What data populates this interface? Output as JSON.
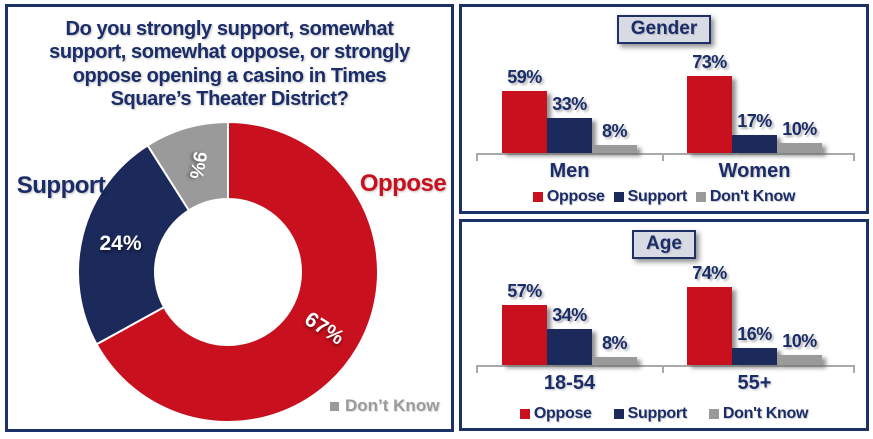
{
  "colors": {
    "oppose_red": "#C8101E",
    "support_navy": "#1B295B",
    "dont_know_gray": "#9A9A9A",
    "text_navy": "#1B2D69",
    "panel_border_navy": "#1D3166",
    "axis_gray": "#A9A9A9",
    "title_box_bg": "#D9DBE4"
  },
  "chart_data": [
    {
      "type": "pie",
      "subtype": "donut",
      "title": "Do you strongly support, somewhat support, somewhat oppose, or strongly oppose opening a casino in Times Square’s Theater District?",
      "title_lines": [
        "Do you strongly support, somewhat",
        "support, somewhat oppose, or strongly",
        "oppose opening a casino in Times",
        "Square’s Theater District?"
      ],
      "start_angle_deg": 0,
      "direction": "clockwise",
      "slices": [
        {
          "label": "Oppose",
          "value": 67,
          "display": "67%",
          "color": "#C8101E",
          "label_rotation_deg": 33
        },
        {
          "label": "Support",
          "value": 24,
          "display": "24%",
          "color": "#1B295B",
          "label_rotation_deg": 0
        },
        {
          "label": "Don’t Know",
          "value": 9,
          "display": "9%",
          "color": "#9A9A9A",
          "label_rotation_deg": 100
        }
      ]
    },
    {
      "type": "bar",
      "panel_title": "Gender",
      "categories": [
        "Men",
        "Women"
      ],
      "series": [
        {
          "name": "Oppose",
          "color": "#C8101E",
          "values": [
            59,
            73
          ],
          "display": [
            "59%",
            "73%"
          ]
        },
        {
          "name": "Support",
          "color": "#1B295B",
          "values": [
            33,
            17
          ],
          "display": [
            "33%",
            "17%"
          ]
        },
        {
          "name": "Don't Know",
          "color": "#9A9A9A",
          "values": [
            8,
            10
          ],
          "display": [
            "8%",
            "10%"
          ]
        }
      ],
      "ylim": [
        0,
        100
      ],
      "value_suffix": "%",
      "grid": false,
      "legend_position": "bottom"
    },
    {
      "type": "bar",
      "panel_title": "Age",
      "categories": [
        "18-54",
        "55+"
      ],
      "series": [
        {
          "name": "Oppose",
          "color": "#C8101E",
          "values": [
            57,
            74
          ],
          "display": [
            "57%",
            "74%"
          ]
        },
        {
          "name": "Support",
          "color": "#1B295B",
          "values": [
            34,
            16
          ],
          "display": [
            "34%",
            "16%"
          ]
        },
        {
          "name": "Don't Know",
          "color": "#9A9A9A",
          "values": [
            8,
            10
          ],
          "display": [
            "8%",
            "10%"
          ]
        }
      ],
      "ylim": [
        0,
        100
      ],
      "value_suffix": "%",
      "grid": false,
      "legend_position": "bottom"
    }
  ]
}
